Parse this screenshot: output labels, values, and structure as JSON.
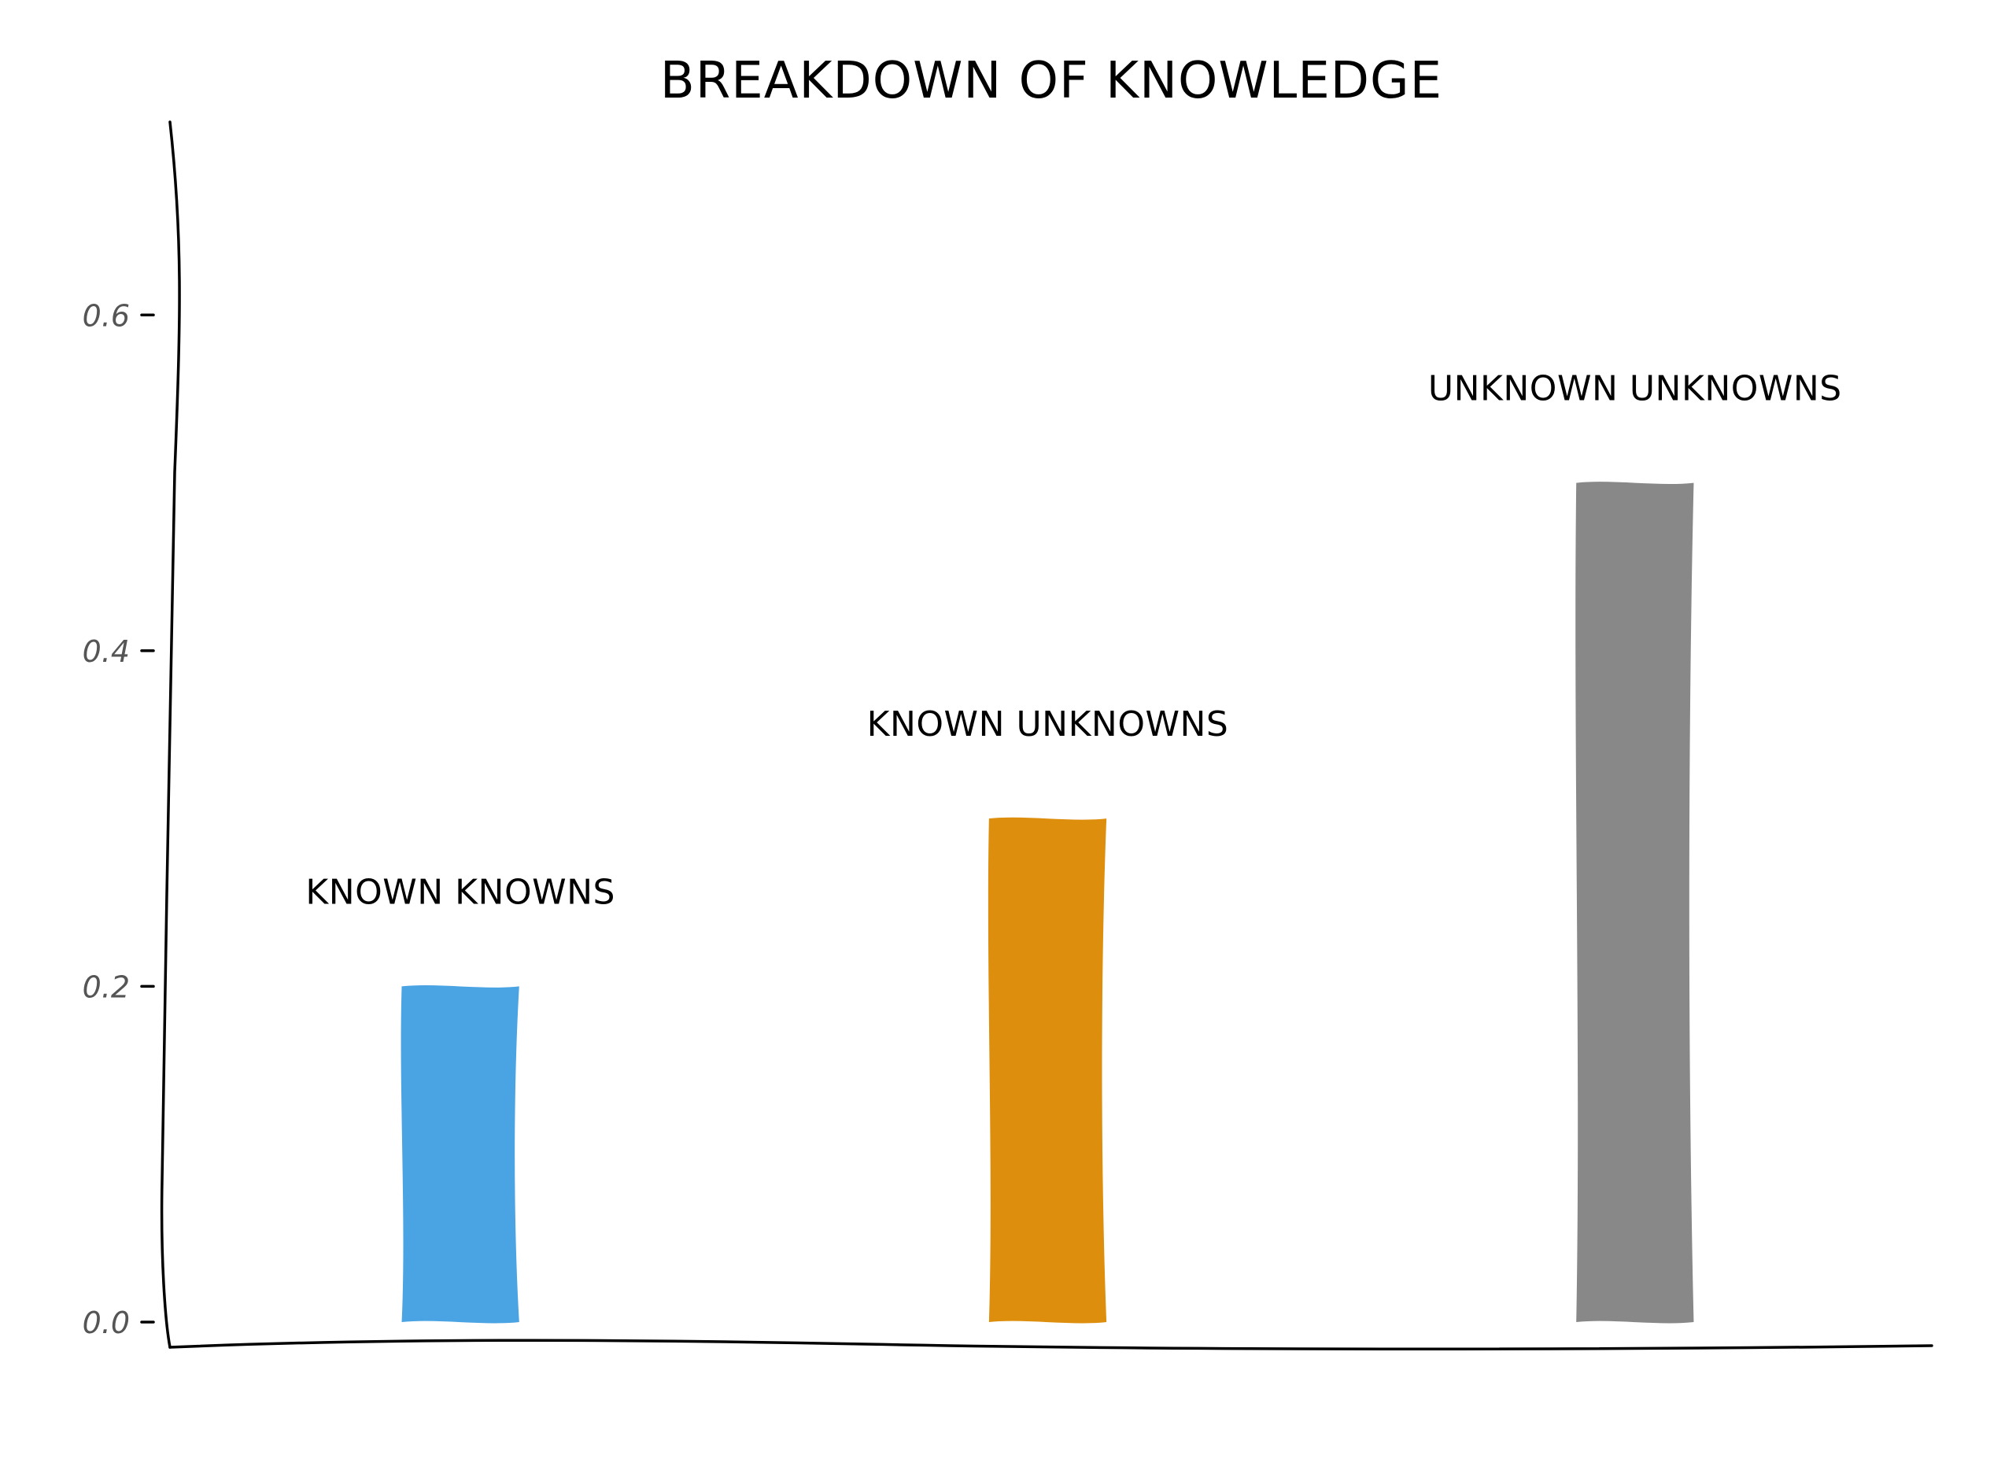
{
  "chart_data": {
    "type": "bar",
    "title": "BREAKDOWN OF KNOWLEDGE",
    "xlabel": "",
    "ylabel": "",
    "categories": [
      "KNOWN KNOWNS",
      "KNOWN UNKNOWNS",
      "UNKNOWN UNKNOWNS"
    ],
    "values": [
      0.2,
      0.3,
      0.5
    ],
    "colors": [
      "#4aa3e3",
      "#dd8e0c",
      "#888888"
    ],
    "yticks": [
      0.0,
      0.2,
      0.4,
      0.6
    ],
    "ytick_labels": [
      "0.0",
      "0.2",
      "0.4",
      "0.6"
    ],
    "ylim": [
      -0.015,
      0.715
    ],
    "grid": false,
    "legend": "none",
    "style": "xkcd"
  }
}
